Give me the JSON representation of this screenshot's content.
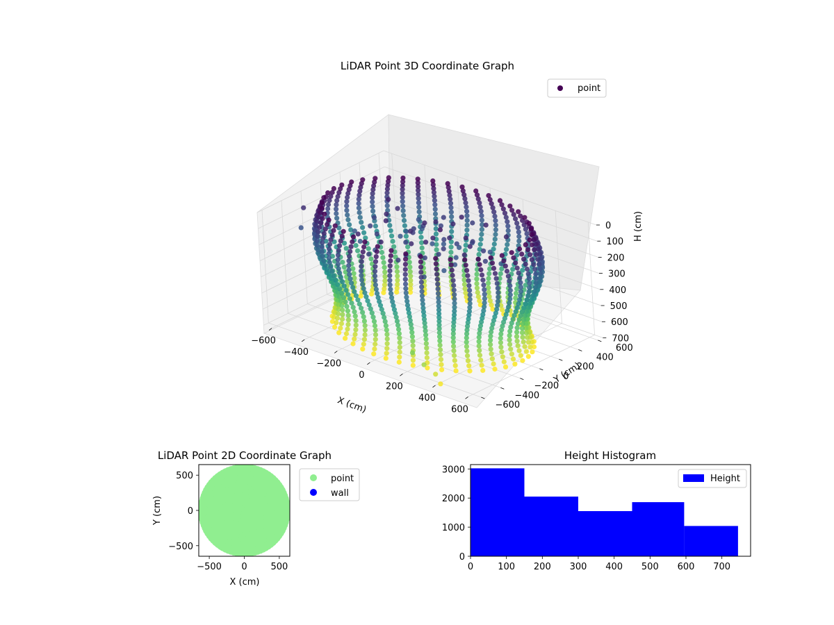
{
  "colors": {
    "viridis_dark": "#440154",
    "viridis_mid": "#21918c",
    "viridis_light": "#fde725",
    "point_green": "#90ee90",
    "wall_blue": "#0000ff",
    "hist_blue": "#0000ff"
  },
  "chart_data": [
    {
      "type": "scatter",
      "projection": "3d",
      "title": "LiDAR Point 3D Coordinate Graph",
      "xlabel": "X (cm)",
      "ylabel": "Y (cm)",
      "zlabel": "H (cm)",
      "xticks": [
        "−600",
        "−400",
        "−200",
        "0",
        "200",
        "400",
        "600"
      ],
      "yticks": [
        "−600",
        "−400",
        "−200",
        "0",
        "200",
        "400",
        "600"
      ],
      "zticks": [
        "0",
        "100",
        "200",
        "300",
        "400",
        "500",
        "600",
        "700"
      ],
      "xlim": [
        -650,
        650
      ],
      "ylim": [
        -650,
        650
      ],
      "zlim": [
        0,
        750
      ],
      "z_inverted": true,
      "colormap": "viridis",
      "ring_radius_cm": 600,
      "ring_height_range_cm": [
        0,
        700
      ],
      "legend": {
        "entries": [
          "point"
        ],
        "position": "upper-right"
      },
      "series": [
        {
          "name": "point",
          "color": "#440154"
        }
      ],
      "grid": true
    },
    {
      "type": "scatter",
      "title": "LiDAR Point 2D Coordinate Graph",
      "xlabel": "X (cm)",
      "ylabel": "Y (cm)",
      "xticks": [
        "−500",
        "0",
        "500"
      ],
      "yticks": [
        "500",
        "0",
        "−500"
      ],
      "xlim": [
        -650,
        650
      ],
      "ylim": [
        -650,
        650
      ],
      "approx_disc_radius_cm": 600,
      "legend": {
        "entries": [
          "point",
          "wall"
        ],
        "position": "outside-right"
      },
      "series": [
        {
          "name": "point",
          "color": "#90ee90"
        },
        {
          "name": "wall",
          "color": "#0000ff"
        }
      ],
      "grid": false
    },
    {
      "type": "bar",
      "title": "Height Histogram",
      "xticks": [
        "0",
        "100",
        "200",
        "300",
        "400",
        "500",
        "600",
        "700"
      ],
      "yticks": [
        "0",
        "1000",
        "2000",
        "3000"
      ],
      "xlim": [
        0,
        780
      ],
      "ylim": [
        0,
        3150
      ],
      "bins": [
        {
          "start": 0,
          "end": 150,
          "count": 3020
        },
        {
          "start": 150,
          "end": 300,
          "count": 2050
        },
        {
          "start": 300,
          "end": 450,
          "count": 1550
        },
        {
          "start": 450,
          "end": 595,
          "count": 1860
        },
        {
          "start": 595,
          "end": 745,
          "count": 1040
        }
      ],
      "legend": {
        "entries": [
          "Height"
        ],
        "position": "upper-right"
      },
      "series": [
        {
          "name": "Height",
          "color": "#0000ff"
        }
      ],
      "grid": false
    }
  ]
}
